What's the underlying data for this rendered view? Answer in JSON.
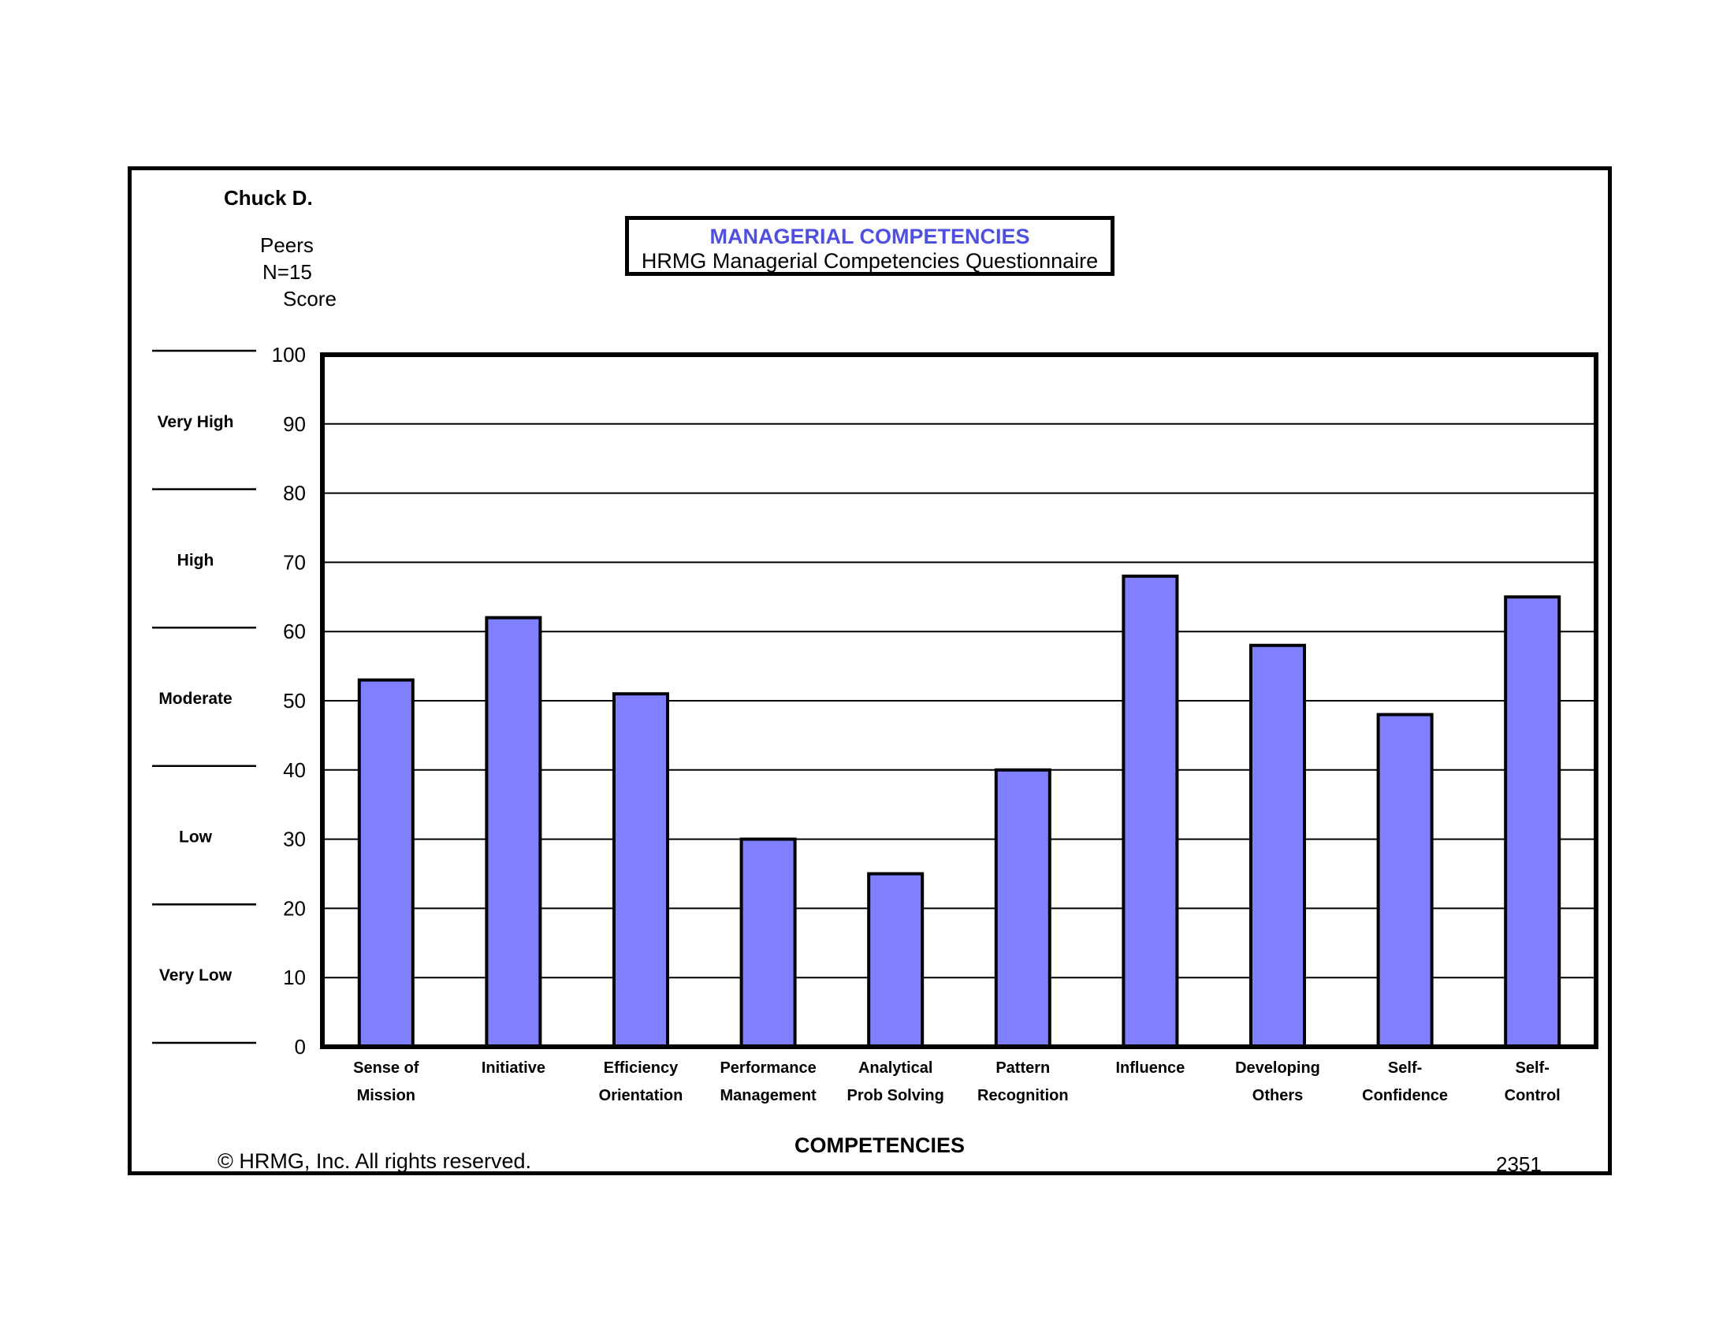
{
  "header": {
    "person": "Chuck D.",
    "group": "Peers",
    "n": "N=15",
    "score_label": "Score"
  },
  "title_box": {
    "title": "MANAGERIAL COMPETENCIES",
    "subtitle": "HRMG Managerial Competencies Questionnaire"
  },
  "colors": {
    "bar_fill": "#8080ff",
    "title": "#5050e0",
    "outline": "#000000"
  },
  "chart_data": {
    "type": "bar",
    "title": "MANAGERIAL COMPETENCIES",
    "subtitle": "HRMG Managerial Competencies Questionnaire",
    "xlabel": "COMPETENCIES",
    "ylabel": "Score",
    "ylim": [
      0,
      100
    ],
    "yticks": [
      0,
      10,
      20,
      30,
      40,
      50,
      60,
      70,
      80,
      90,
      100
    ],
    "grid": true,
    "categories": [
      [
        "Sense of",
        "Mission"
      ],
      [
        "Initiative"
      ],
      [
        "Efficiency",
        "Orientation"
      ],
      [
        "Performance",
        "Management"
      ],
      [
        "Analytical",
        "Prob Solving"
      ],
      [
        "Pattern",
        "Recognition"
      ],
      [
        "Influence"
      ],
      [
        "Developing",
        "Others"
      ],
      [
        "Self-",
        "Confidence"
      ],
      [
        "Self-",
        "Control"
      ]
    ],
    "values": [
      53,
      62,
      51,
      30,
      25,
      40,
      68,
      58,
      48,
      65
    ],
    "bands": [
      {
        "label": "Very High",
        "range": [
          80,
          100
        ]
      },
      {
        "label": "High",
        "range": [
          60,
          80
        ]
      },
      {
        "label": "Moderate",
        "range": [
          40,
          60
        ]
      },
      {
        "label": "Low",
        "range": [
          20,
          40
        ]
      },
      {
        "label": "Very Low",
        "range": [
          0,
          20
        ]
      }
    ]
  },
  "footer": {
    "copyright": "© HRMG, Inc.  All rights reserved.",
    "code": "2351"
  }
}
